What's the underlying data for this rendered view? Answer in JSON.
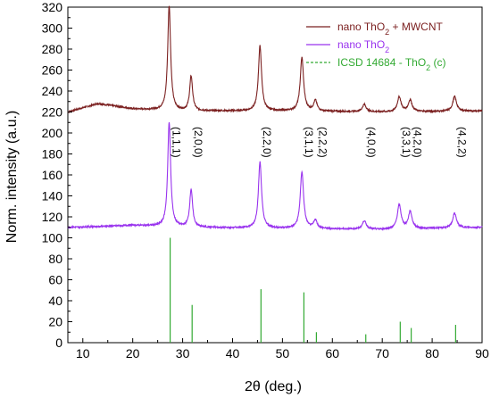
{
  "chart_data": {
    "type": "line",
    "xlabel": "2θ (deg.)",
    "ylabel": "Norm. intensity (a.u.)",
    "xlim": [
      7,
      90
    ],
    "ylim": [
      0,
      320
    ],
    "x_ticks": [
      10,
      20,
      30,
      40,
      50,
      60,
      70,
      80,
      90
    ],
    "y_ticks": [
      0,
      20,
      40,
      60,
      80,
      100,
      120,
      140,
      160,
      180,
      200,
      220,
      240,
      260,
      280,
      300,
      320
    ],
    "grid": false,
    "legend_position": "top-right",
    "legend": [
      {
        "pre": "nano ThO",
        "sub": "2",
        "post": " + MWCNT",
        "color": "#7b2020",
        "style": "solid"
      },
      {
        "pre": "nano ThO",
        "sub": "2",
        "post": "",
        "color": "#9933ee",
        "style": "solid"
      },
      {
        "pre": "ICSD 14684 - ThO",
        "sub": "2",
        "post": " (c)",
        "color": "#33aa33",
        "style": "dashed"
      }
    ],
    "series": [
      {
        "color": "#7b2020",
        "baseline": 220,
        "background": [
          [
            7,
            220
          ],
          [
            10,
            224
          ],
          [
            13,
            228
          ],
          [
            16,
            226
          ],
          [
            20,
            223
          ],
          [
            30,
            221
          ],
          [
            50,
            221
          ],
          [
            70,
            220
          ],
          [
            90,
            221
          ]
        ],
        "peaks": [
          [
            27.3,
            100,
            0.35
          ],
          [
            31.7,
            33,
            0.35
          ],
          [
            45.5,
            62,
            0.38
          ],
          [
            53.9,
            51,
            0.4
          ],
          [
            56.6,
            10,
            0.4
          ],
          [
            66.4,
            7,
            0.45
          ],
          [
            73.4,
            14,
            0.45
          ],
          [
            75.6,
            11,
            0.45
          ],
          [
            84.5,
            14,
            0.45
          ]
        ]
      },
      {
        "color": "#9933ee",
        "baseline": 110,
        "background": [
          [
            7,
            110
          ],
          [
            15,
            111
          ],
          [
            20,
            112
          ],
          [
            30,
            110
          ],
          [
            50,
            109
          ],
          [
            70,
            108
          ],
          [
            90,
            110
          ]
        ],
        "peaks": [
          [
            27.3,
            100,
            0.35
          ],
          [
            31.7,
            36,
            0.35
          ],
          [
            45.5,
            63,
            0.38
          ],
          [
            53.9,
            54,
            0.4
          ],
          [
            56.6,
            8,
            0.4
          ],
          [
            66.4,
            8,
            0.45
          ],
          [
            73.4,
            23,
            0.45
          ],
          [
            75.6,
            16,
            0.45
          ],
          [
            84.5,
            14,
            0.45
          ]
        ]
      }
    ],
    "reference_lines": {
      "color": "#33aa33",
      "peaks": [
        [
          27.5,
          100
        ],
        [
          31.9,
          36
        ],
        [
          45.7,
          51
        ],
        [
          54.3,
          48
        ],
        [
          56.8,
          10
        ],
        [
          66.7,
          8
        ],
        [
          73.6,
          20
        ],
        [
          75.8,
          14
        ],
        [
          84.7,
          17
        ]
      ]
    },
    "hkl_labels": [
      {
        "x": 27.3,
        "text": "(1,1,1)"
      },
      {
        "x": 31.7,
        "text": "(2,0,0)"
      },
      {
        "x": 45.5,
        "text": "(2,2,0)"
      },
      {
        "x": 53.9,
        "text": "(3,1,1)"
      },
      {
        "x": 56.6,
        "text": "(2,2,2)"
      },
      {
        "x": 66.4,
        "text": "(4,0,0)"
      },
      {
        "x": 73.4,
        "text": "(3,3,1)"
      },
      {
        "x": 75.6,
        "text": "(4,2,0)"
      },
      {
        "x": 84.5,
        "text": "(4,2,2)"
      }
    ]
  }
}
